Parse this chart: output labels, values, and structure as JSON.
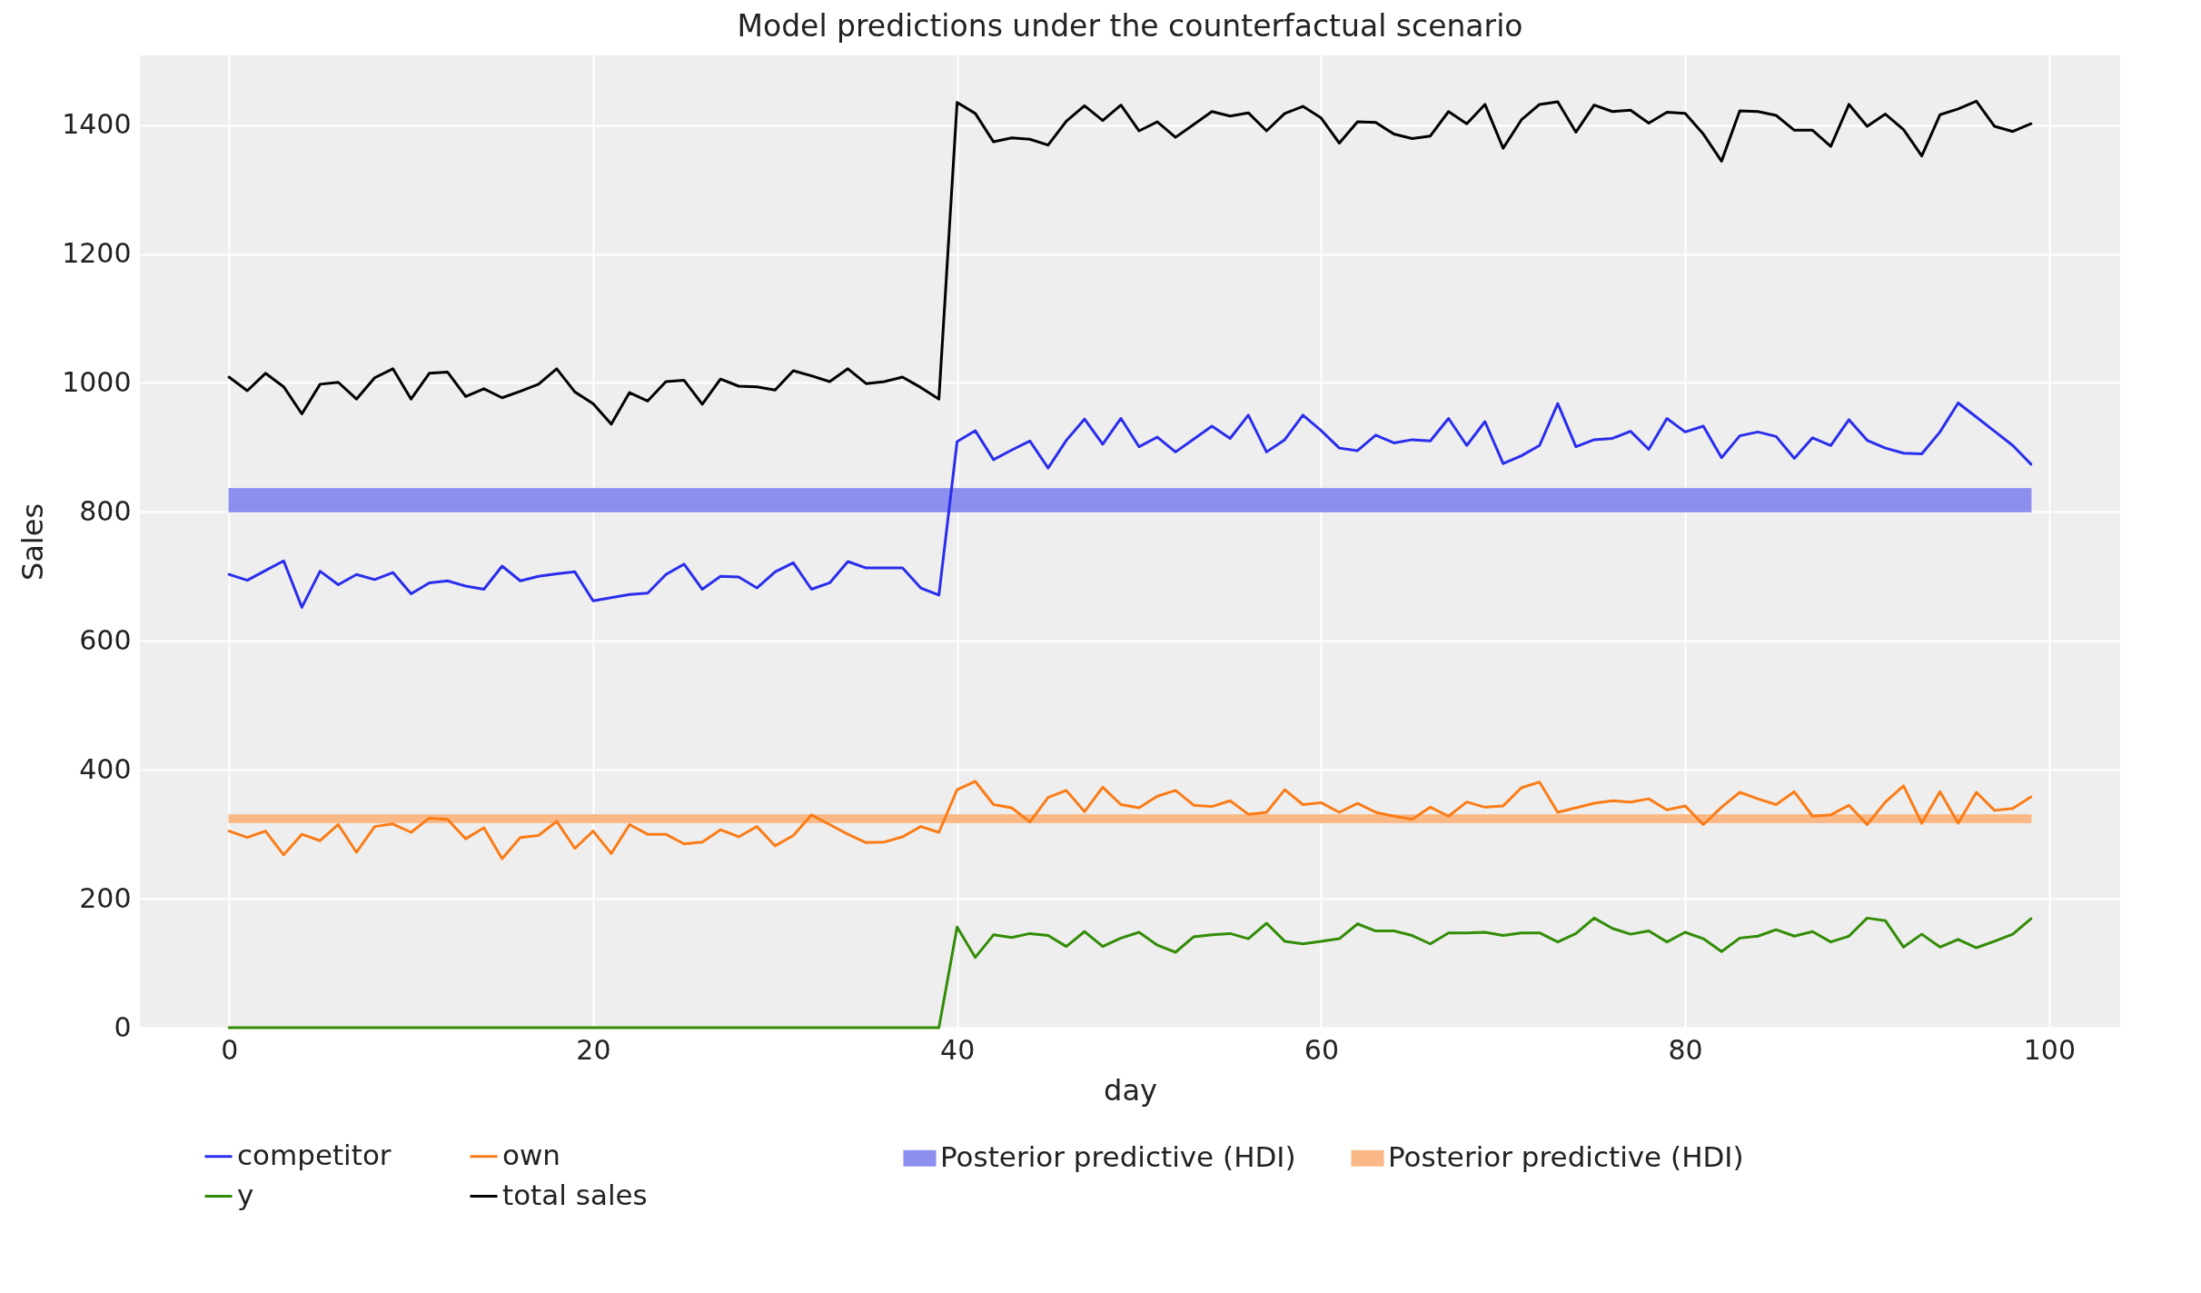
{
  "chart_data": {
    "type": "line",
    "title": "Model predictions under the counterfactual scenario",
    "xlabel": "day",
    "ylabel": "Sales",
    "x": [
      0,
      1,
      2,
      3,
      4,
      5,
      6,
      7,
      8,
      9,
      10,
      11,
      12,
      13,
      14,
      15,
      16,
      17,
      18,
      19,
      20,
      21,
      22,
      23,
      24,
      25,
      26,
      27,
      28,
      29,
      30,
      31,
      32,
      33,
      34,
      35,
      36,
      37,
      38,
      39,
      40,
      41,
      42,
      43,
      44,
      45,
      46,
      47,
      48,
      49,
      50,
      51,
      52,
      53,
      54,
      55,
      56,
      57,
      58,
      59,
      60,
      61,
      62,
      63,
      64,
      65,
      66,
      67,
      68,
      69,
      70,
      71,
      72,
      73,
      74,
      75,
      76,
      77,
      78,
      79,
      80,
      81,
      82,
      83,
      84,
      85,
      86,
      87,
      88,
      89,
      90,
      91,
      92,
      93,
      94,
      95,
      96,
      97,
      98,
      99
    ],
    "series": [
      {
        "name": "competitor",
        "color": "#2a2eec",
        "values": [
          703,
          694,
          709,
          724,
          652,
          708,
          687,
          703,
          695,
          706,
          673,
          690,
          693,
          685,
          680,
          716,
          693,
          700,
          704,
          707,
          662,
          667,
          672,
          674,
          703,
          719,
          680,
          700,
          699,
          682,
          707,
          721,
          680,
          690,
          723,
          713,
          713,
          713,
          682,
          671,
          909,
          926,
          881,
          896,
          910,
          868,
          911,
          944,
          905,
          945,
          901,
          916,
          893,
          913,
          933,
          914,
          950,
          893,
          912,
          950,
          926,
          899,
          895,
          919,
          907,
          912,
          910,
          945,
          903,
          940,
          875,
          887,
          903,
          968,
          901,
          912,
          914,
          925,
          897,
          945,
          924,
          933,
          884,
          918,
          924,
          917,
          883,
          915,
          903,
          943,
          911,
          899,
          891,
          890,
          924,
          969,
          947,
          925,
          903,
          874
        ]
      },
      {
        "name": "own",
        "color": "#fa7c17",
        "values": [
          305,
          295,
          305,
          268,
          300,
          290,
          315,
          272,
          312,
          316,
          303,
          325,
          323,
          293,
          310,
          262,
          295,
          298,
          320,
          278,
          305,
          270,
          315,
          300,
          300,
          285,
          288,
          307,
          296,
          312,
          282,
          298,
          330,
          315,
          300,
          287,
          288,
          296,
          312,
          303,
          369,
          382,
          346,
          341,
          319,
          357,
          368,
          335,
          373,
          346,
          341,
          359,
          368,
          345,
          343,
          352,
          331,
          334,
          369,
          346,
          349,
          334,
          348,
          334,
          328,
          323,
          342,
          328,
          350,
          342,
          344,
          372,
          381,
          334,
          341,
          348,
          352,
          350,
          355,
          338,
          344,
          315,
          342,
          365,
          355,
          346,
          366,
          328,
          330,
          345,
          315,
          350,
          375,
          317,
          366,
          317,
          365,
          337,
          340,
          358
        ]
      },
      {
        "name": "y",
        "color": "#328c06",
        "values": [
          0,
          0,
          0,
          0,
          0,
          0,
          0,
          0,
          0,
          0,
          0,
          0,
          0,
          0,
          0,
          0,
          0,
          0,
          0,
          0,
          0,
          0,
          0,
          0,
          0,
          0,
          0,
          0,
          0,
          0,
          0,
          0,
          0,
          0,
          0,
          0,
          0,
          0,
          0,
          0,
          156,
          109,
          144,
          140,
          146,
          143,
          126,
          149,
          126,
          139,
          148,
          128,
          117,
          141,
          144,
          146,
          138,
          162,
          134,
          130,
          134,
          138,
          161,
          150,
          150,
          143,
          130,
          147,
          147,
          148,
          143,
          147,
          147,
          133,
          146,
          170,
          154,
          145,
          150,
          133,
          148,
          138,
          118,
          139,
          142,
          152,
          142,
          149,
          133,
          142,
          170,
          166,
          125,
          145,
          125,
          137,
          124,
          134,
          145,
          169
        ]
      },
      {
        "name": "total sales",
        "color": "#000000",
        "values": [
          1009,
          988,
          1015,
          994,
          952,
          998,
          1001,
          975,
          1008,
          1022,
          975,
          1015,
          1017,
          979,
          991,
          977,
          987,
          998,
          1022,
          986,
          968,
          936,
          985,
          972,
          1002,
          1004,
          967,
          1006,
          995,
          994,
          989,
          1019,
          1011,
          1002,
          1022,
          999,
          1002,
          1009,
          993,
          975,
          1435,
          1418,
          1374,
          1380,
          1378,
          1369,
          1406,
          1430,
          1407,
          1431,
          1391,
          1405,
          1381,
          1401,
          1421,
          1414,
          1419,
          1391,
          1418,
          1429,
          1411,
          1372,
          1405,
          1404,
          1386,
          1379,
          1383,
          1421,
          1402,
          1432,
          1364,
          1408,
          1432,
          1436,
          1389,
          1431,
          1421,
          1423,
          1403,
          1420,
          1418,
          1386,
          1344,
          1422,
          1421,
          1415,
          1392,
          1392,
          1367,
          1432,
          1398,
          1417,
          1393,
          1352,
          1416,
          1425,
          1437,
          1398,
          1390,
          1402
        ]
      }
    ],
    "bands": [
      {
        "axis": "y",
        "from": 800,
        "to": 836,
        "label": "Posterior predictive (HDI)",
        "color": "#8c8fee"
      },
      {
        "axis": "y",
        "from": 318,
        "to": 330,
        "label": "Posterior predictive (HDI)",
        "color": "#f9b885"
      }
    ],
    "xlim": [
      -4.9,
      103.9
    ],
    "xticks": [
      0,
      20,
      40,
      60,
      80,
      100
    ],
    "ylim": [
      0,
      1508
    ],
    "yticks": [
      0,
      200,
      400,
      600,
      800,
      1000,
      1200,
      1400
    ],
    "grid": true,
    "legend": "bottom"
  }
}
